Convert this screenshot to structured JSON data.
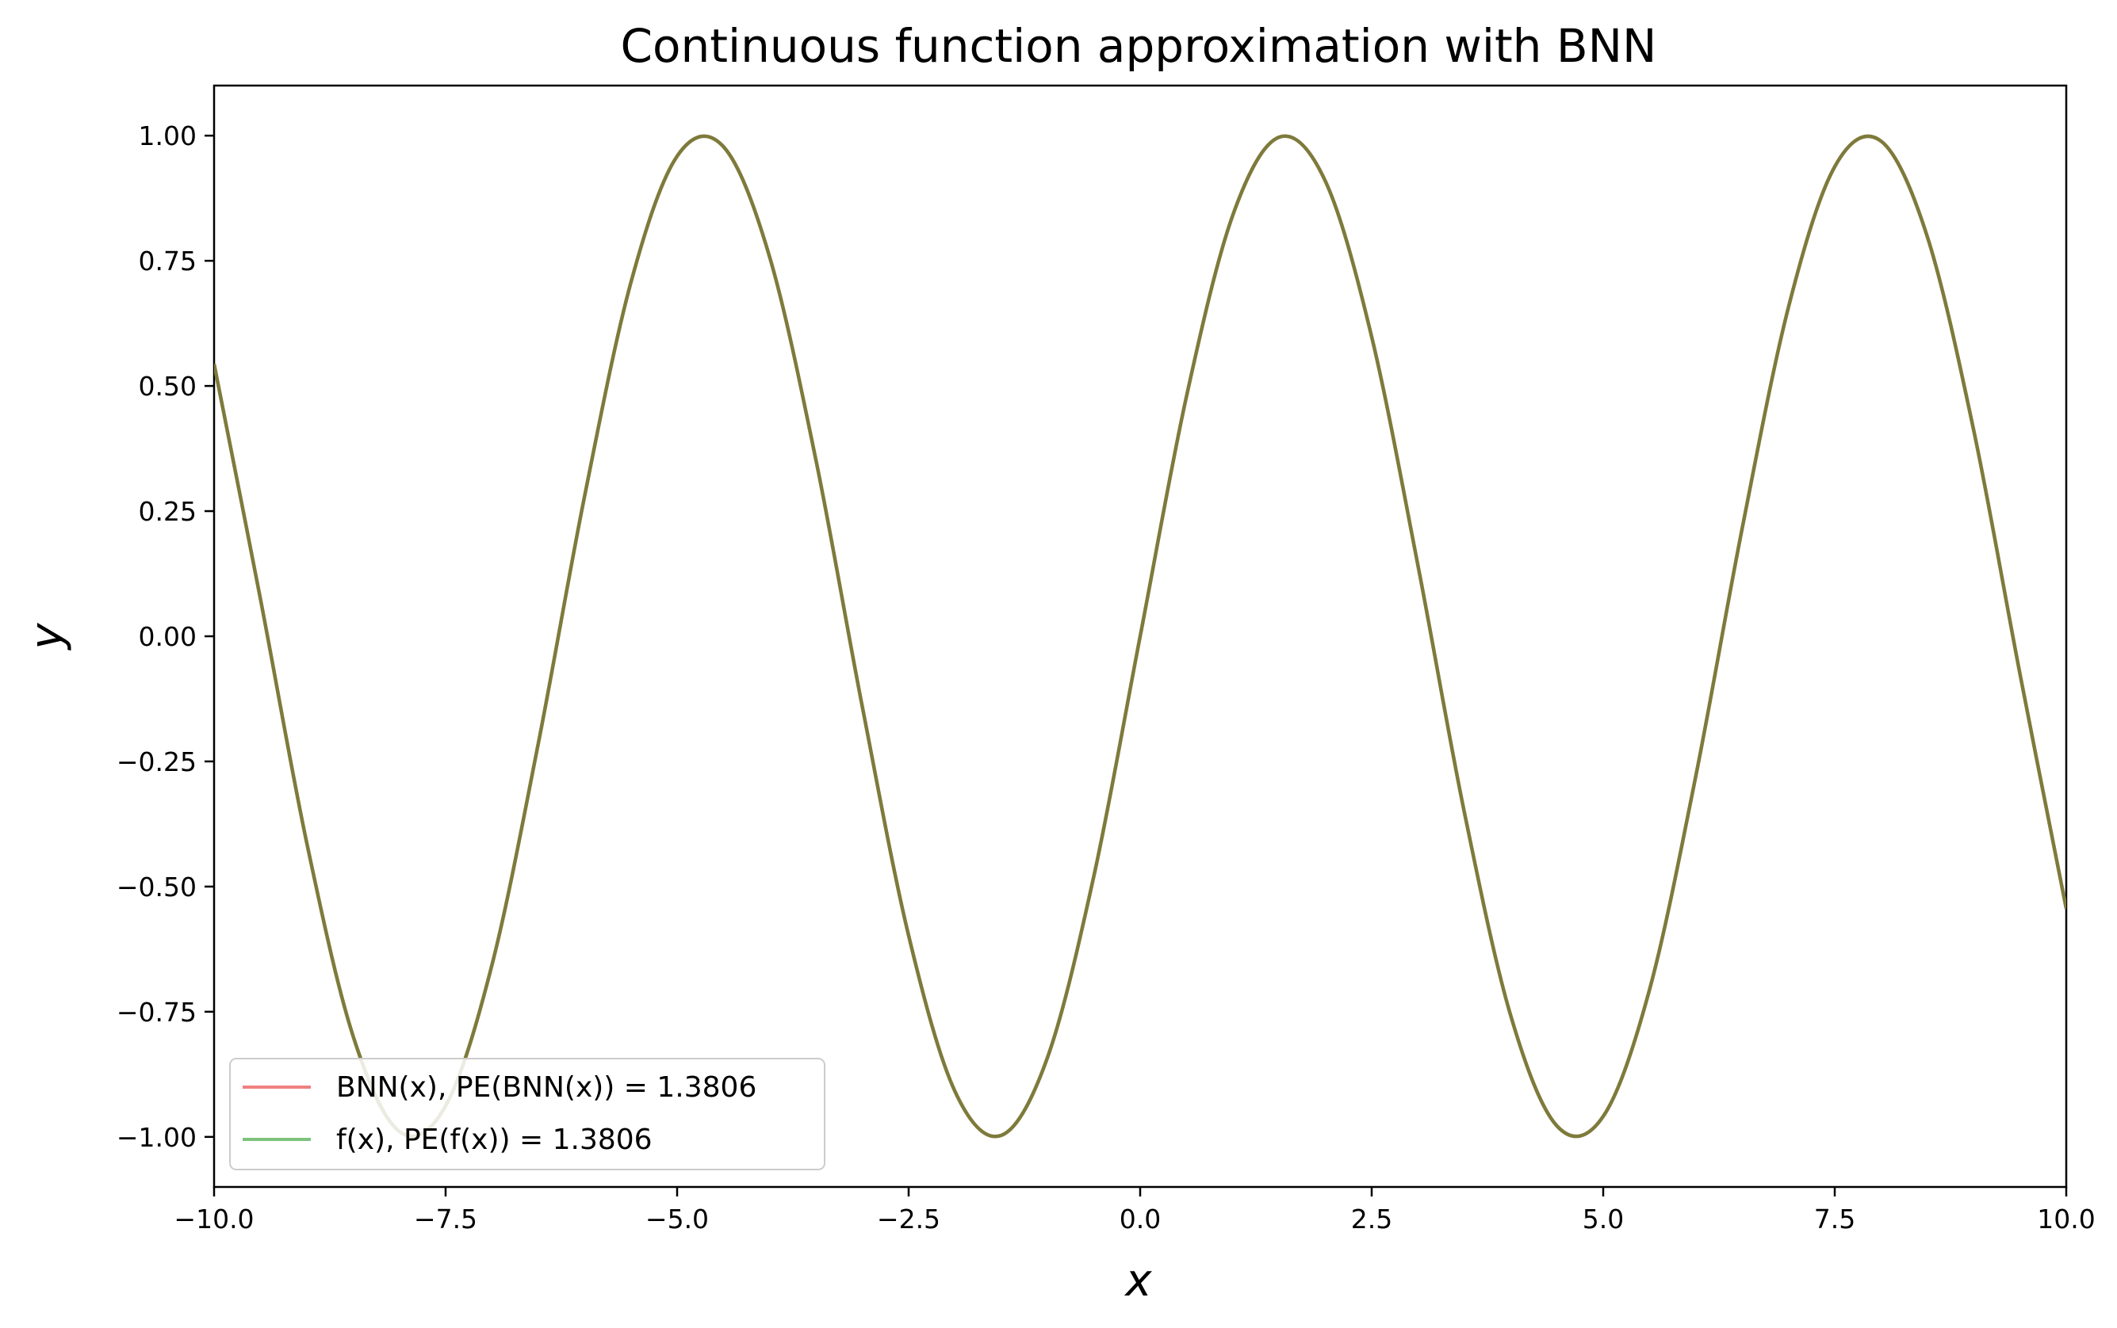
{
  "chart_data": {
    "type": "line",
    "title": "Continuous function approximation with BNN",
    "xlabel": "x",
    "ylabel": "y",
    "xlim": [
      -10.0,
      10.0
    ],
    "ylim": [
      -1.1,
      1.1
    ],
    "x_ticks": [
      -10.0,
      -7.5,
      -5.0,
      -2.5,
      0.0,
      2.5,
      5.0,
      7.5,
      10.0
    ],
    "x_tick_labels": [
      "−10.0",
      "−7.5",
      "−5.0",
      "−2.5",
      "0.0",
      "2.5",
      "5.0",
      "7.5",
      "10.0"
    ],
    "y_ticks": [
      1.0,
      0.75,
      0.5,
      0.25,
      0.0,
      -0.25,
      -0.5,
      -0.75,
      -1.0
    ],
    "y_tick_labels": [
      "1.00",
      "0.75",
      "0.50",
      "0.25",
      "0.00",
      "−0.25",
      "−0.50",
      "−0.75",
      "−1.00"
    ],
    "grid": false,
    "legend_position": "lower-left",
    "x": [
      -10.0,
      -9.5,
      -9.0,
      -8.5,
      -8.0,
      -7.5,
      -7.0,
      -6.5,
      -6.0,
      -5.5,
      -5.0,
      -4.5,
      -4.0,
      -3.5,
      -3.0,
      -2.5,
      -2.0,
      -1.5,
      -1.0,
      -0.5,
      0.0,
      0.5,
      1.0,
      1.5,
      2.0,
      2.5,
      3.0,
      3.5,
      4.0,
      4.5,
      5.0,
      5.5,
      6.0,
      6.5,
      7.0,
      7.5,
      8.0,
      8.5,
      9.0,
      9.5,
      10.0
    ],
    "series": [
      {
        "name": "BNN(x), PE(BNN(x)) = 1.3806",
        "color": "#f08080",
        "values": [
          0.544,
          0.075,
          -0.412,
          -0.798,
          -0.989,
          -0.938,
          -0.657,
          -0.215,
          0.279,
          0.706,
          0.959,
          0.978,
          0.757,
          0.351,
          -0.141,
          -0.598,
          -0.909,
          -0.997,
          -0.841,
          -0.479,
          0.0,
          0.479,
          0.841,
          0.997,
          0.909,
          0.598,
          0.141,
          -0.351,
          -0.757,
          -0.978,
          -0.959,
          -0.706,
          -0.279,
          0.215,
          0.657,
          0.938,
          0.989,
          0.798,
          0.412,
          -0.075,
          -0.544
        ]
      },
      {
        "name": "f(x), PE(f(x)) = 1.3806",
        "color": "#7cc27c",
        "values": [
          0.544,
          0.075,
          -0.412,
          -0.798,
          -0.989,
          -0.938,
          -0.657,
          -0.215,
          0.279,
          0.706,
          0.959,
          0.978,
          0.757,
          0.351,
          -0.141,
          -0.598,
          -0.909,
          -0.997,
          -0.841,
          -0.479,
          0.0,
          0.479,
          0.841,
          0.997,
          0.909,
          0.598,
          0.141,
          -0.351,
          -0.757,
          -0.978,
          -0.959,
          -0.706,
          -0.279,
          0.215,
          0.657,
          0.938,
          0.989,
          0.798,
          0.412,
          -0.075,
          -0.544
        ]
      }
    ],
    "overlap_color": "#7d7b3b"
  }
}
